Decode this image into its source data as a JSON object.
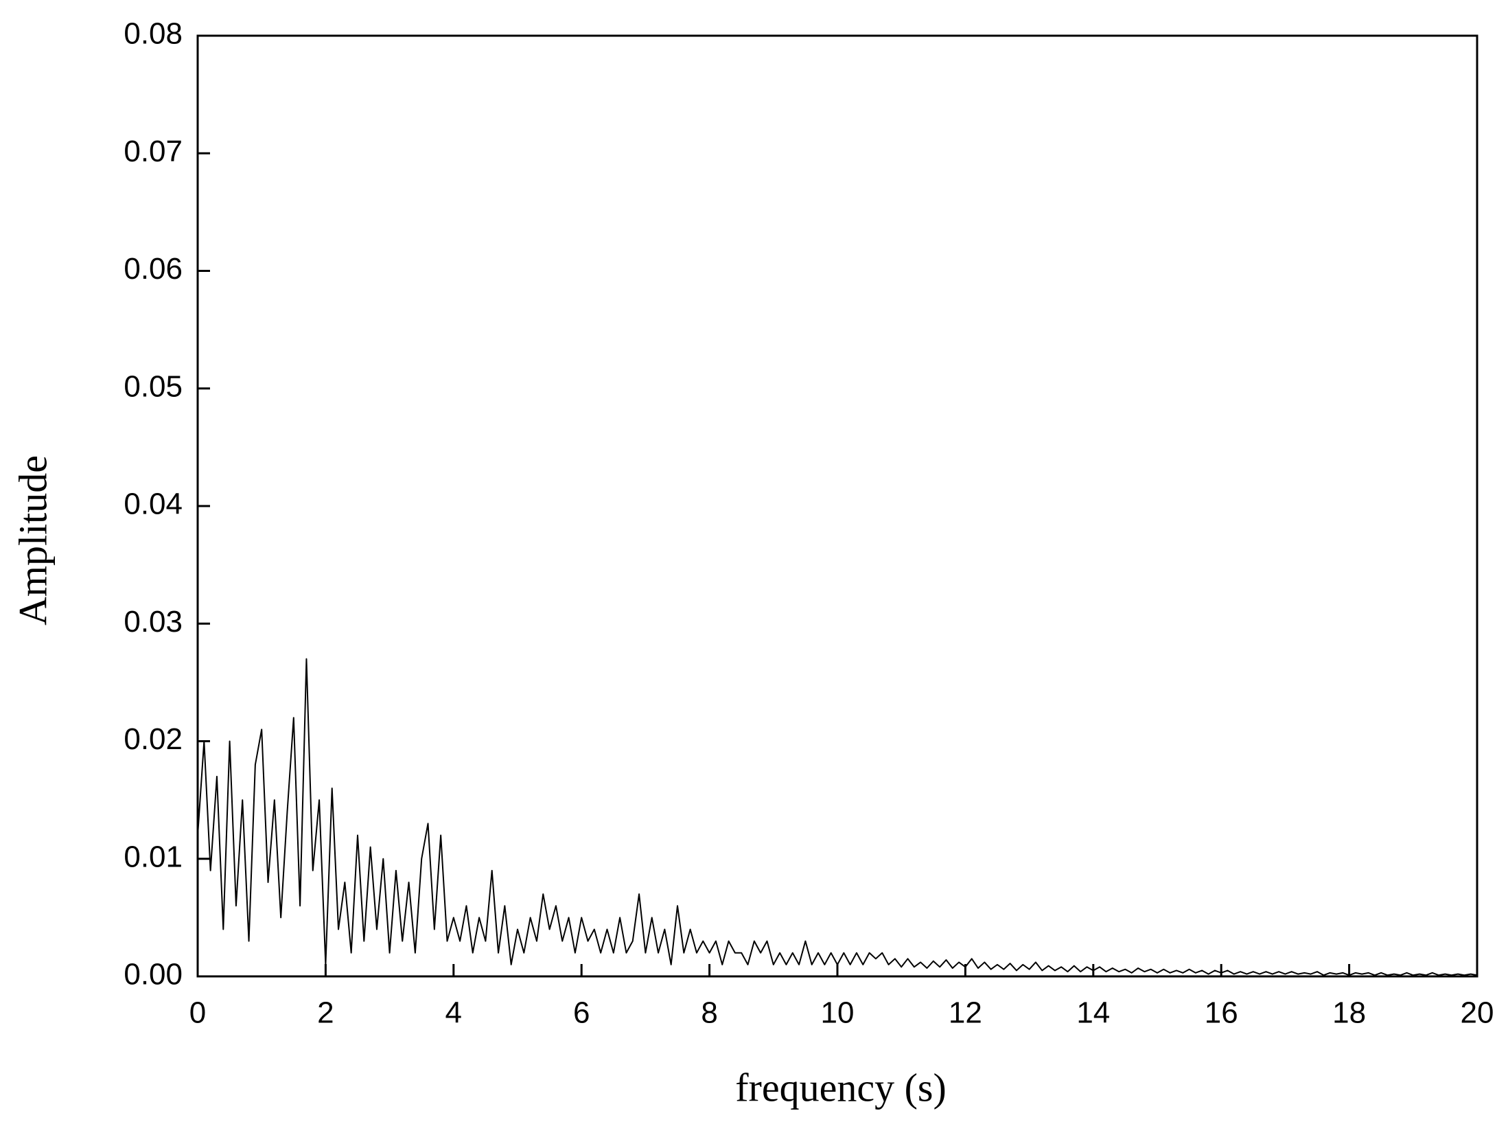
{
  "chart_data": {
    "type": "line",
    "x_label": "frequency (s)",
    "y_label": "Amplitude",
    "color": "#000000",
    "x": [
      0,
      0.1,
      0.2,
      0.3,
      0.4,
      0.5,
      0.6,
      0.7,
      0.8,
      0.9,
      1,
      1.1,
      1.2,
      1.3,
      1.4,
      1.5,
      1.6,
      1.7,
      1.8,
      1.9,
      2,
      2.1,
      2.2,
      2.3,
      2.4,
      2.5,
      2.6,
      2.7,
      2.8,
      2.9,
      3,
      3.1,
      3.2,
      3.3,
      3.4,
      3.5,
      3.6,
      3.7,
      3.8,
      3.9,
      4,
      4.1,
      4.2,
      4.3,
      4.4,
      4.5,
      4.6,
      4.7,
      4.8,
      4.9,
      5,
      5.1,
      5.2,
      5.3,
      5.4,
      5.5,
      5.6,
      5.7,
      5.8,
      5.9,
      6,
      6.1,
      6.2,
      6.3,
      6.4,
      6.5,
      6.6,
      6.7,
      6.8,
      6.9,
      7,
      7.1,
      7.2,
      7.3,
      7.4,
      7.5,
      7.6,
      7.7,
      7.8,
      7.9,
      8,
      8.1,
      8.2,
      8.3,
      8.4,
      8.5,
      8.6,
      8.7,
      8.8,
      8.9,
      9,
      9.1,
      9.2,
      9.3,
      9.4,
      9.5,
      9.6,
      9.7,
      9.8,
      9.9,
      10,
      10.1,
      10.2,
      10.3,
      10.4,
      10.5,
      10.6,
      10.7,
      10.8,
      10.9,
      11,
      11.1,
      11.2,
      11.3,
      11.4,
      11.5,
      11.6,
      11.7,
      11.8,
      11.9,
      12,
      12.1,
      12.2,
      12.3,
      12.4,
      12.5,
      12.6,
      12.7,
      12.8,
      12.9,
      13,
      13.1,
      13.2,
      13.3,
      13.4,
      13.5,
      13.6,
      13.7,
      13.8,
      13.9,
      14,
      14.1,
      14.2,
      14.3,
      14.4,
      14.5,
      14.6,
      14.7,
      14.8,
      14.9,
      15,
      15.1,
      15.2,
      15.3,
      15.4,
      15.5,
      15.6,
      15.7,
      15.8,
      15.9,
      16,
      16.1,
      16.2,
      16.3,
      16.4,
      16.5,
      16.6,
      16.7,
      16.8,
      16.9,
      17,
      17.1,
      17.2,
      17.3,
      17.4,
      17.5,
      17.6,
      17.7,
      17.8,
      17.9,
      18,
      18.1,
      18.2,
      18.3,
      18.4,
      18.5,
      18.6,
      18.7,
      18.8,
      18.9,
      19,
      19.1,
      19.2,
      19.3,
      19.4,
      19.5,
      19.6,
      19.7,
      19.8,
      19.9,
      20
    ],
    "values": [
      0.012,
      0.02,
      0.009,
      0.017,
      0.004,
      0.02,
      0.006,
      0.015,
      0.003,
      0.018,
      0.021,
      0.008,
      0.015,
      0.005,
      0.014,
      0.022,
      0.006,
      0.027,
      0.009,
      0.015,
      0.001,
      0.016,
      0.004,
      0.008,
      0.002,
      0.012,
      0.003,
      0.011,
      0.004,
      0.01,
      0.002,
      0.009,
      0.003,
      0.008,
      0.002,
      0.01,
      0.013,
      0.004,
      0.012,
      0.003,
      0.005,
      0.003,
      0.006,
      0.002,
      0.005,
      0.003,
      0.009,
      0.002,
      0.006,
      0.001,
      0.004,
      0.002,
      0.005,
      0.003,
      0.007,
      0.004,
      0.006,
      0.003,
      0.005,
      0.002,
      0.005,
      0.003,
      0.004,
      0.002,
      0.004,
      0.002,
      0.005,
      0.002,
      0.003,
      0.007,
      0.002,
      0.005,
      0.002,
      0.004,
      0.001,
      0.006,
      0.002,
      0.004,
      0.002,
      0.003,
      0.002,
      0.003,
      0.001,
      0.003,
      0.002,
      0.002,
      0.001,
      0.003,
      0.002,
      0.003,
      0.001,
      0.002,
      0.001,
      0.002,
      0.001,
      0.003,
      0.001,
      0.002,
      0.001,
      0.002,
      0.001,
      0.002,
      0.001,
      0.002,
      0.001,
      0.002,
      0.0015,
      0.002,
      0.001,
      0.0015,
      0.0008,
      0.0015,
      0.0008,
      0.0012,
      0.0007,
      0.0013,
      0.0008,
      0.0014,
      0.0007,
      0.0012,
      0.0008,
      0.0015,
      0.0007,
      0.0012,
      0.0006,
      0.001,
      0.0006,
      0.0011,
      0.0005,
      0.001,
      0.0006,
      0.0012,
      0.0005,
      0.0009,
      0.0005,
      0.0008,
      0.0004,
      0.0009,
      0.0004,
      0.0008,
      0.0005,
      0.0008,
      0.0004,
      0.0007,
      0.0004,
      0.0006,
      0.0003,
      0.0007,
      0.0004,
      0.0006,
      0.0003,
      0.0006,
      0.0003,
      0.0005,
      0.0003,
      0.0006,
      0.0003,
      0.0005,
      0.0002,
      0.0005,
      0.0003,
      0.0005,
      0.0002,
      0.0004,
      0.0002,
      0.0004,
      0.0002,
      0.0004,
      0.0002,
      0.0004,
      0.0002,
      0.0004,
      0.0002,
      0.0003,
      0.0002,
      0.0004,
      0.0001,
      0.0003,
      0.0002,
      0.0003,
      0.0001,
      0.0003,
      0.0002,
      0.0003,
      0.0001,
      0.0003,
      0.0001,
      0.0002,
      0.0001,
      0.0003,
      0.0001,
      0.0002,
      0.0001,
      0.0003,
      0.0001,
      0.0002,
      0.0001,
      0.0002,
      0.0001,
      0.0002,
      0.0001
    ],
    "xlim": [
      0,
      20
    ],
    "xticks": [
      0,
      2,
      4,
      6,
      8,
      10,
      12,
      14,
      16,
      18,
      20
    ],
    "ylim": [
      0,
      0.08
    ],
    "yticks": [
      {
        "value": 0,
        "label": "0.00"
      },
      0.01,
      0.02,
      0.03,
      0.04,
      0.05,
      0.06,
      0.07,
      0.08
    ],
    "grid": false
  }
}
